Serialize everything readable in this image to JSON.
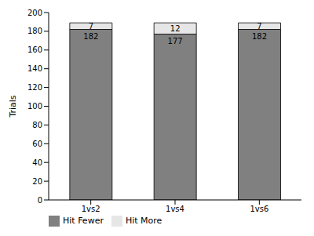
{
  "chart_data": {
    "type": "bar",
    "stacked": true,
    "y_label": "Trials",
    "categories": [
      "1vs2",
      "1vs4",
      "1vs6"
    ],
    "series": [
      {
        "name": "Hit Fewer",
        "color": "#808080",
        "values": [
          182,
          177,
          182
        ]
      },
      {
        "name": "Hit More",
        "color": "#e6e6e6",
        "values": [
          7,
          12,
          7
        ]
      }
    ],
    "ylim": [
      0,
      200
    ],
    "yticks": [
      0,
      20,
      40,
      60,
      80,
      100,
      120,
      140,
      160,
      180,
      200
    ],
    "data_labels": true,
    "legend": "lower left"
  }
}
